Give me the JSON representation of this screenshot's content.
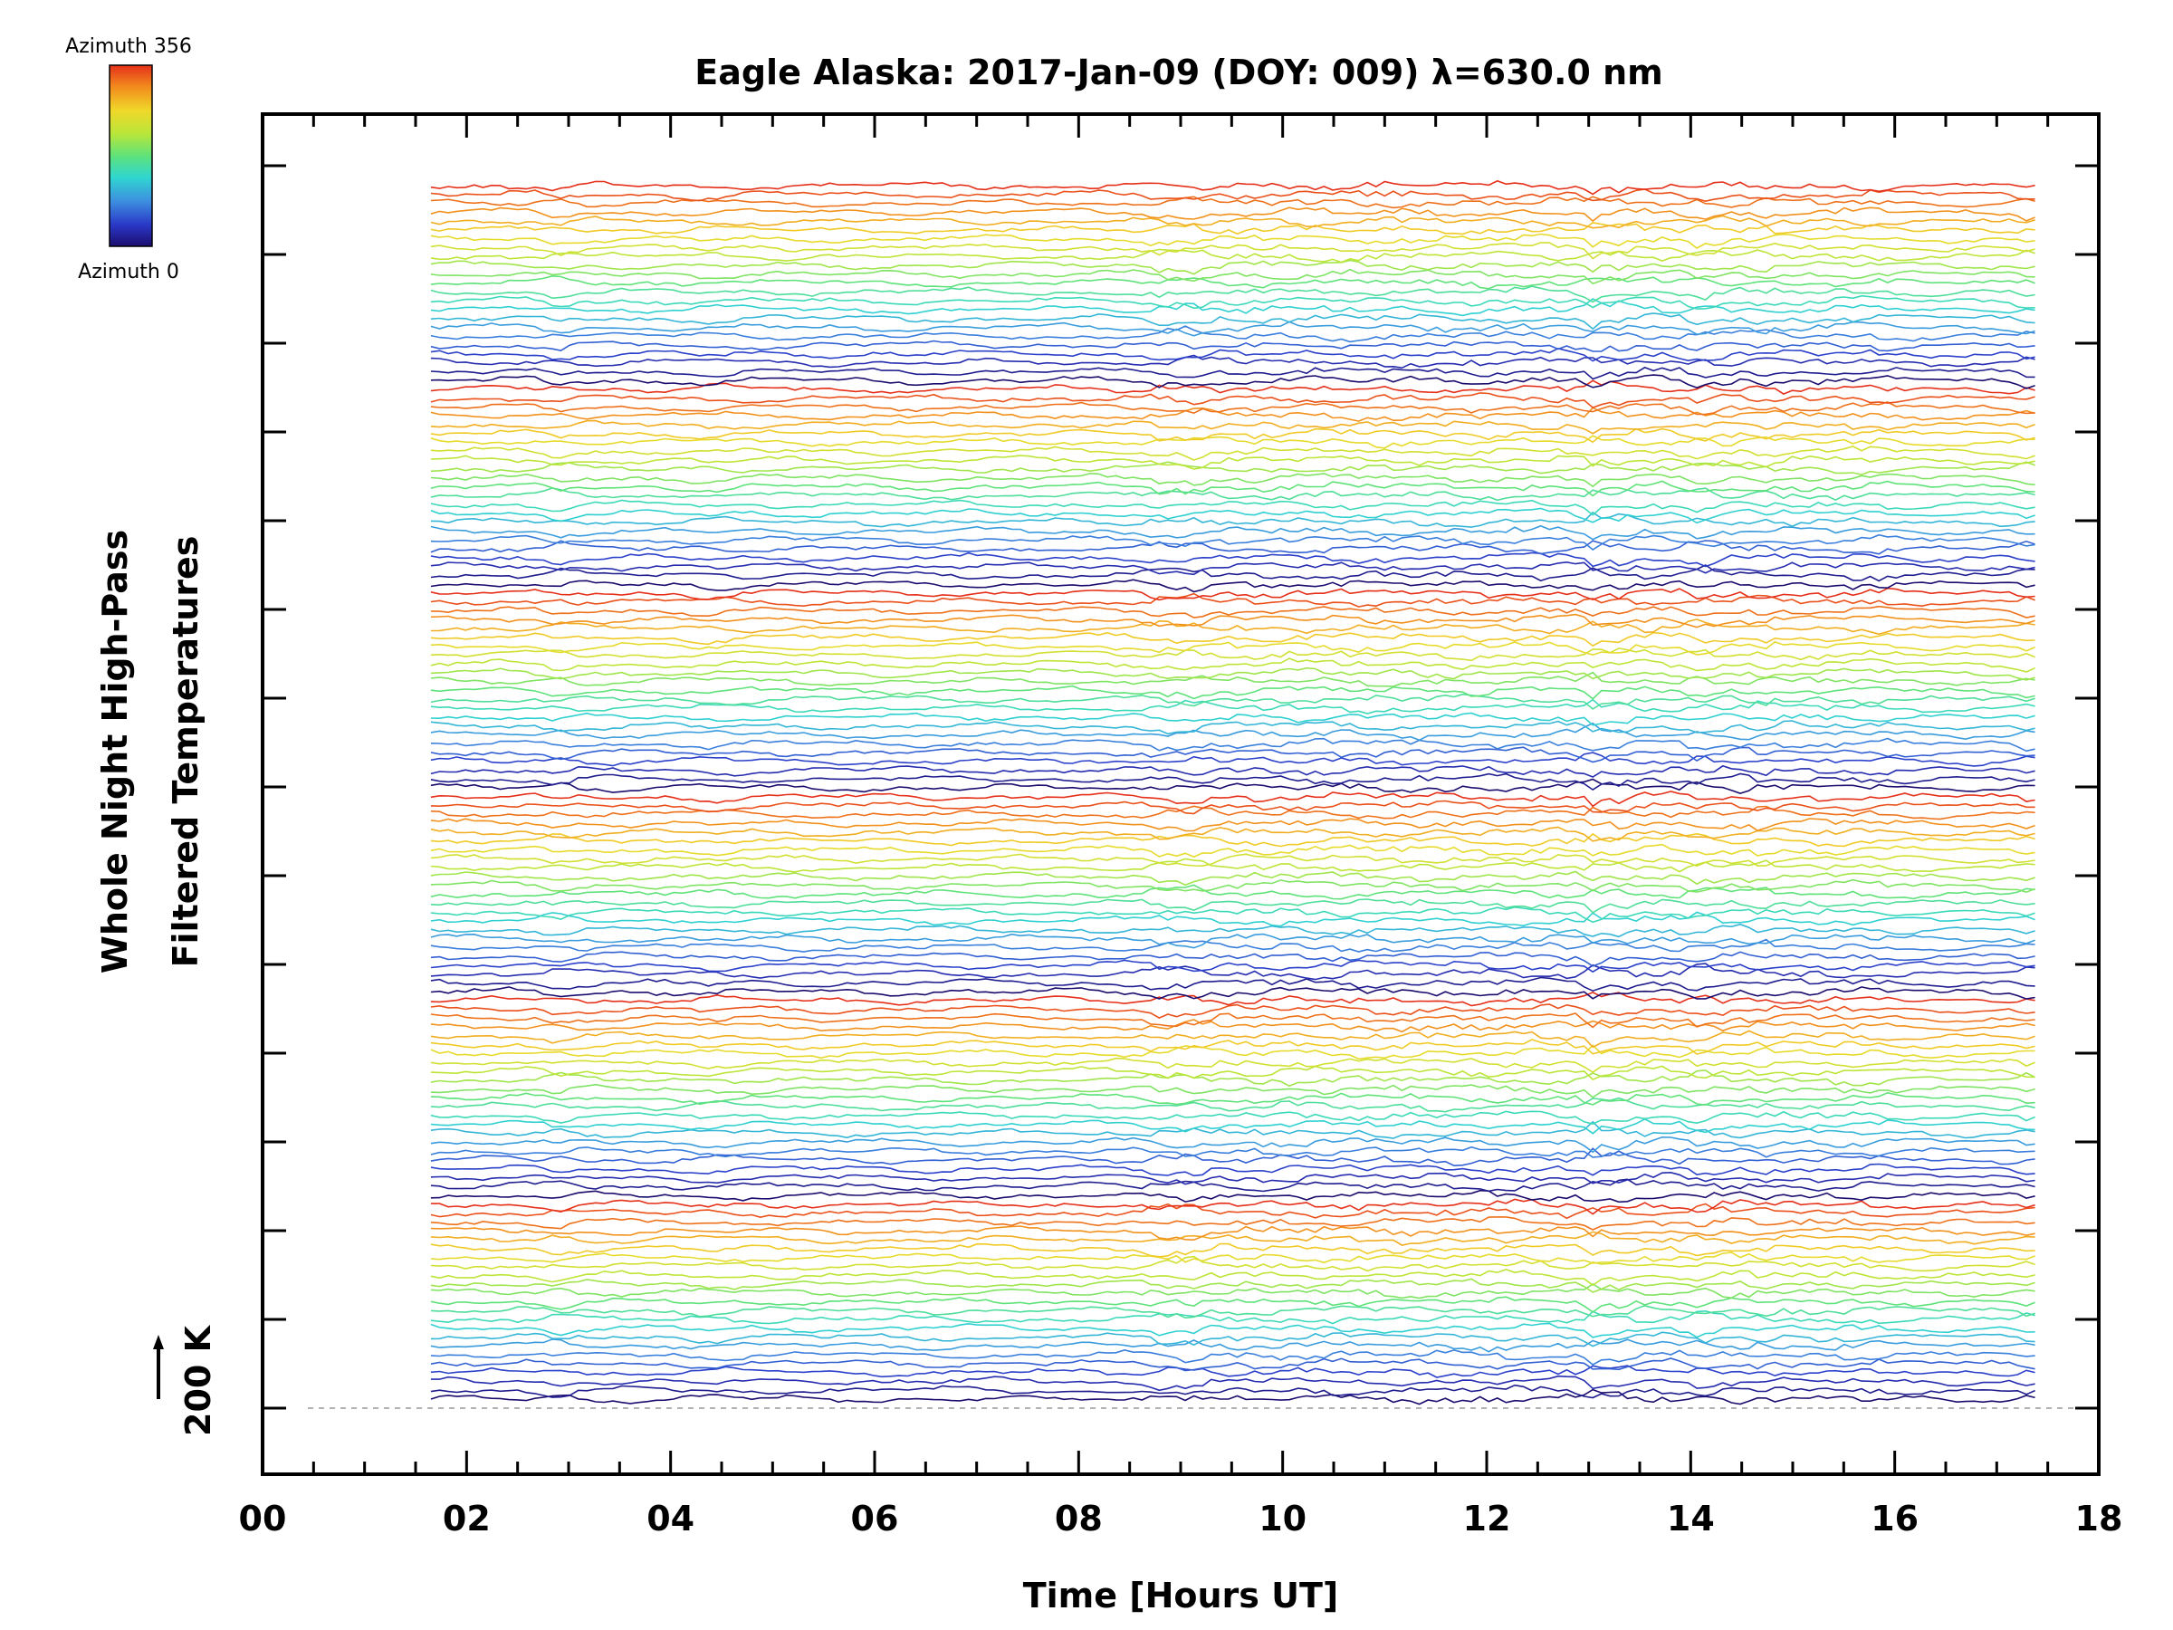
{
  "chart_data": {
    "type": "line",
    "title": "Eagle Alaska: 2017-Jan-09 (DOY: 009) λ=630.0 nm",
    "xlabel": "Time [Hours UT]",
    "ylabel_line1": "Whole Night High-Pass",
    "ylabel_line2": "Filtered Temperatures",
    "xlim": [
      0,
      18
    ],
    "x_tick_labels": [
      "00",
      "02",
      "04",
      "06",
      "08",
      "10",
      "12",
      "14",
      "16",
      "18"
    ],
    "x_tick_values": [
      0,
      2,
      4,
      6,
      8,
      10,
      12,
      14,
      16,
      18
    ],
    "data_start_hour": 1.65,
    "data_end_hour": 17.4,
    "scale_bar_label": "200 K",
    "colorbar": {
      "top_label": "Azimuth 356",
      "bottom_label": "Azimuth 0",
      "azimuth_min": 0,
      "azimuth_max": 356
    },
    "series_count": 138,
    "series_groups": 6,
    "series_note": "Stacked, vertically offset traces; one per look direction, colored by azimuth (rainbow colormap).",
    "colormap": [
      "#1b0d6e",
      "#2a39c8",
      "#3d8fe0",
      "#2fd6d0",
      "#5fe27a",
      "#b8e63a",
      "#f0d829",
      "#f28b1d",
      "#e5301a"
    ],
    "grid": false,
    "legend": "colorbar-top-left"
  }
}
